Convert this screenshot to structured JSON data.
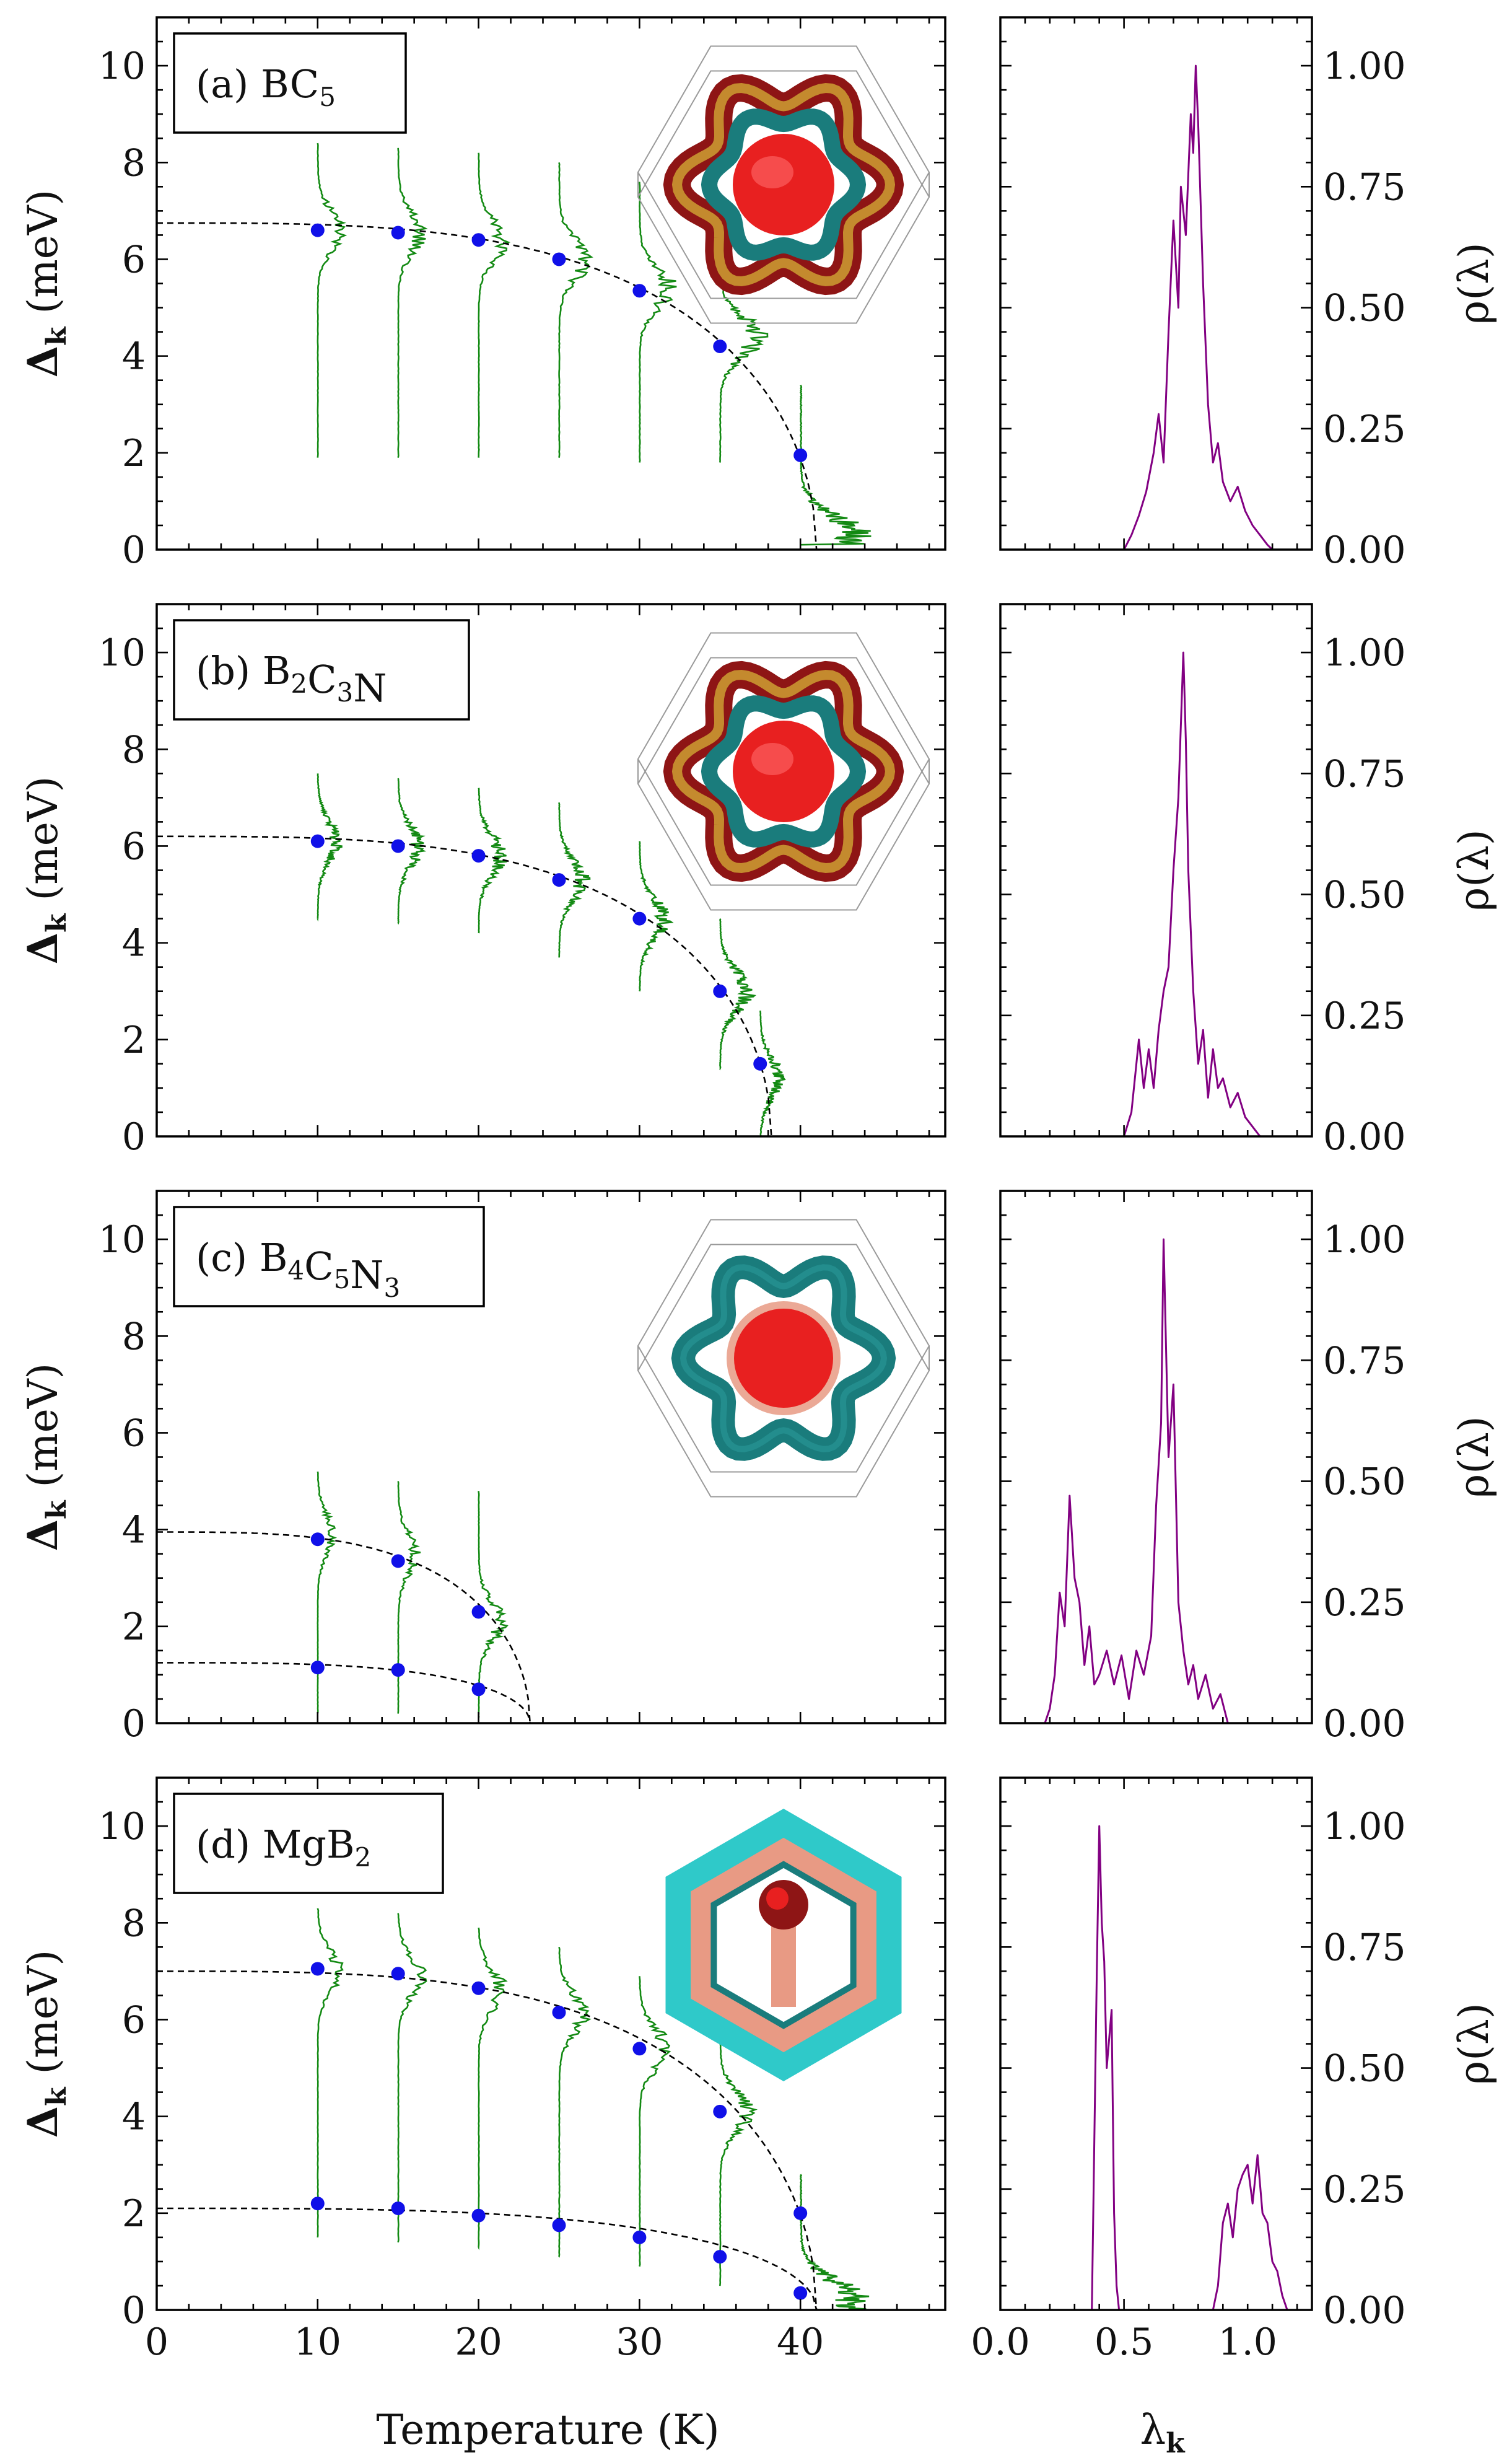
{
  "chart_data": [
    {
      "type": "line",
      "panel": "a",
      "label_prefix": "(a) ",
      "compound": "BC",
      "compound_sub": "5",
      "compound_label": "(a) BC5",
      "left": {
        "xlabel": "Temperature (K)",
        "ylabel": "Δk (meV)",
        "xlim": [
          0,
          49
        ],
        "ylim": [
          0,
          11
        ],
        "xticks": [
          0,
          10,
          20,
          30,
          40
        ],
        "yticks": [
          0,
          2,
          4,
          6,
          8,
          10
        ],
        "gap_points": [
          {
            "T": 10,
            "gap": 6.6
          },
          {
            "T": 15,
            "gap": 6.55
          },
          {
            "T": 20,
            "gap": 6.4
          },
          {
            "T": 25,
            "gap": 6.0
          },
          {
            "T": 30,
            "gap": 5.35
          },
          {
            "T": 35,
            "gap": 4.2
          },
          {
            "T": 40,
            "gap": 1.95
          }
        ],
        "fit_curves": [
          {
            "delta0": 6.75,
            "Tc": 41
          }
        ],
        "distributions": [
          {
            "T": 10,
            "ymin": 1.9,
            "ymax": 8.4,
            "peak": 6.6,
            "height": 1.5
          },
          {
            "T": 15,
            "ymin": 1.9,
            "ymax": 8.3,
            "peak": 6.55,
            "height": 1.6
          },
          {
            "T": 20,
            "ymin": 1.9,
            "ymax": 8.2,
            "peak": 6.4,
            "height": 1.7
          },
          {
            "T": 25,
            "ymin": 1.9,
            "ymax": 8.0,
            "peak": 6.0,
            "height": 1.8
          },
          {
            "T": 30,
            "ymin": 1.8,
            "ymax": 7.6,
            "peak": 5.4,
            "height": 2.0
          },
          {
            "T": 35,
            "ymin": 1.8,
            "ymax": 6.5,
            "peak": 4.4,
            "height": 2.5
          },
          {
            "T": 40,
            "ymin": 0.1,
            "ymax": 3.4,
            "peak": 0.3,
            "height": 3.8
          }
        ]
      },
      "right": {
        "xlabel": "λk",
        "ylabel": "ρ(λ)",
        "xlim": [
          0,
          1.26
        ],
        "ylim": [
          0,
          1.1
        ],
        "xticks": [
          0.0,
          0.5,
          1.0
        ],
        "yticks": [
          0.0,
          0.25,
          0.5,
          0.75,
          1.0
        ],
        "x": [
          0.5,
          0.53,
          0.56,
          0.59,
          0.62,
          0.64,
          0.66,
          0.68,
          0.7,
          0.72,
          0.73,
          0.75,
          0.77,
          0.78,
          0.79,
          0.8,
          0.82,
          0.84,
          0.86,
          0.88,
          0.9,
          0.93,
          0.96,
          0.99,
          1.02,
          1.05,
          1.08,
          1.1
        ],
        "y": [
          0.0,
          0.03,
          0.07,
          0.12,
          0.2,
          0.28,
          0.18,
          0.45,
          0.68,
          0.5,
          0.75,
          0.65,
          0.9,
          0.82,
          1.0,
          0.88,
          0.55,
          0.3,
          0.18,
          0.22,
          0.14,
          0.1,
          0.13,
          0.08,
          0.05,
          0.03,
          0.01,
          0.0
        ]
      }
    },
    {
      "type": "line",
      "panel": "b",
      "label_prefix": "(b) ",
      "compound": "B2C3N",
      "compound_label": "(b) B2C3N",
      "left": {
        "xlabel": "Temperature (K)",
        "ylabel": "Δk (meV)",
        "xlim": [
          0,
          49
        ],
        "ylim": [
          0,
          11
        ],
        "xticks": [
          0,
          10,
          20,
          30,
          40
        ],
        "yticks": [
          0,
          2,
          4,
          6,
          8,
          10
        ],
        "gap_points": [
          {
            "T": 10,
            "gap": 6.1
          },
          {
            "T": 15,
            "gap": 6.0
          },
          {
            "T": 20,
            "gap": 5.8
          },
          {
            "T": 25,
            "gap": 5.3
          },
          {
            "T": 30,
            "gap": 4.5
          },
          {
            "T": 35,
            "gap": 3.0
          },
          {
            "T": 37.5,
            "gap": 1.5
          }
        ],
        "fit_curves": [
          {
            "delta0": 6.2,
            "Tc": 38.2
          }
        ],
        "distributions": [
          {
            "T": 10,
            "ymin": 4.5,
            "ymax": 7.5,
            "peak": 6.1,
            "height": 1.3
          },
          {
            "T": 15,
            "ymin": 4.4,
            "ymax": 7.4,
            "peak": 6.0,
            "height": 1.4
          },
          {
            "T": 20,
            "ymin": 4.2,
            "ymax": 7.2,
            "peak": 5.8,
            "height": 1.5
          },
          {
            "T": 25,
            "ymin": 3.7,
            "ymax": 6.9,
            "peak": 5.3,
            "height": 1.6
          },
          {
            "T": 30,
            "ymin": 3.0,
            "ymax": 6.1,
            "peak": 4.5,
            "height": 1.7
          },
          {
            "T": 35,
            "ymin": 1.4,
            "ymax": 4.5,
            "peak": 3.0,
            "height": 1.9
          },
          {
            "T": 37.5,
            "ymin": 0.0,
            "ymax": 2.6,
            "peak": 1.2,
            "height": 1.3
          }
        ]
      },
      "right": {
        "xlabel": "λk",
        "ylabel": "ρ(λ)",
        "xlim": [
          0,
          1.26
        ],
        "ylim": [
          0,
          1.1
        ],
        "xticks": [
          0.0,
          0.5,
          1.0
        ],
        "yticks": [
          0.0,
          0.25,
          0.5,
          0.75,
          1.0
        ],
        "x": [
          0.5,
          0.53,
          0.56,
          0.58,
          0.6,
          0.62,
          0.64,
          0.66,
          0.68,
          0.7,
          0.72,
          0.74,
          0.75,
          0.76,
          0.78,
          0.8,
          0.82,
          0.84,
          0.86,
          0.88,
          0.9,
          0.93,
          0.96,
          0.99,
          1.02,
          1.05
        ],
        "y": [
          0.0,
          0.05,
          0.2,
          0.1,
          0.18,
          0.1,
          0.22,
          0.3,
          0.35,
          0.55,
          0.7,
          1.0,
          0.82,
          0.55,
          0.3,
          0.15,
          0.22,
          0.08,
          0.18,
          0.1,
          0.12,
          0.06,
          0.09,
          0.04,
          0.02,
          0.0
        ]
      }
    },
    {
      "type": "line",
      "panel": "c",
      "label_prefix": "(c) ",
      "compound": "B4C5N3",
      "compound_label": "(c) B4C5N3",
      "left": {
        "xlabel": "Temperature (K)",
        "ylabel": "Δk (meV)",
        "xlim": [
          0,
          49
        ],
        "ylim": [
          0,
          11
        ],
        "xticks": [
          0,
          10,
          20,
          30,
          40
        ],
        "yticks": [
          0,
          2,
          4,
          6,
          8,
          10
        ],
        "gap_points": [
          {
            "T": 10,
            "gap": 3.8
          },
          {
            "T": 15,
            "gap": 3.35
          },
          {
            "T": 20,
            "gap": 2.3
          },
          {
            "T": 10,
            "gap": 1.15
          },
          {
            "T": 15,
            "gap": 1.1
          },
          {
            "T": 20,
            "gap": 0.7
          }
        ],
        "fit_curves": [
          {
            "delta0": 3.95,
            "Tc": 23.2
          },
          {
            "delta0": 1.25,
            "Tc": 23.2
          }
        ],
        "distributions": [
          {
            "T": 10,
            "ymin": 0.2,
            "ymax": 5.2,
            "peak": 3.9,
            "height": 1.0
          },
          {
            "T": 15,
            "ymin": 0.2,
            "ymax": 5.0,
            "peak": 3.5,
            "height": 1.2
          },
          {
            "T": 20,
            "ymin": 0.1,
            "ymax": 4.8,
            "peak": 2.1,
            "height": 1.5
          }
        ]
      },
      "right": {
        "xlabel": "λk",
        "ylabel": "ρ(λ)",
        "xlim": [
          0,
          1.26
        ],
        "ylim": [
          0,
          1.1
        ],
        "xticks": [
          0.0,
          0.5,
          1.0
        ],
        "yticks": [
          0.0,
          0.25,
          0.5,
          0.75,
          1.0
        ],
        "x": [
          0.18,
          0.2,
          0.22,
          0.24,
          0.26,
          0.28,
          0.3,
          0.32,
          0.34,
          0.36,
          0.38,
          0.4,
          0.43,
          0.46,
          0.49,
          0.52,
          0.55,
          0.58,
          0.61,
          0.63,
          0.65,
          0.66,
          0.68,
          0.7,
          0.72,
          0.74,
          0.76,
          0.78,
          0.8,
          0.83,
          0.86,
          0.89,
          0.92
        ],
        "y": [
          0.0,
          0.03,
          0.1,
          0.27,
          0.2,
          0.47,
          0.3,
          0.25,
          0.12,
          0.2,
          0.08,
          0.1,
          0.15,
          0.08,
          0.14,
          0.05,
          0.15,
          0.1,
          0.18,
          0.45,
          0.62,
          1.0,
          0.55,
          0.7,
          0.25,
          0.15,
          0.08,
          0.12,
          0.05,
          0.1,
          0.03,
          0.06,
          0.0
        ]
      }
    },
    {
      "type": "line",
      "panel": "d",
      "label_prefix": "(d) ",
      "compound": "MgB2",
      "compound_label": "(d) MgB2",
      "left": {
        "xlabel": "Temperature (K)",
        "ylabel": "Δk (meV)",
        "xlim": [
          0,
          49
        ],
        "ylim": [
          0,
          11
        ],
        "xticks": [
          0,
          10,
          20,
          30,
          40
        ],
        "yticks": [
          0,
          2,
          4,
          6,
          8,
          10
        ],
        "gap_points": [
          {
            "T": 10,
            "gap": 7.05
          },
          {
            "T": 15,
            "gap": 6.95
          },
          {
            "T": 20,
            "gap": 6.65
          },
          {
            "T": 25,
            "gap": 6.15
          },
          {
            "T": 30,
            "gap": 5.4
          },
          {
            "T": 35,
            "gap": 4.1
          },
          {
            "T": 40,
            "gap": 2.0
          },
          {
            "T": 10,
            "gap": 2.2
          },
          {
            "T": 15,
            "gap": 2.1
          },
          {
            "T": 20,
            "gap": 1.95
          },
          {
            "T": 25,
            "gap": 1.75
          },
          {
            "T": 30,
            "gap": 1.5
          },
          {
            "T": 35,
            "gap": 1.1
          },
          {
            "T": 40,
            "gap": 0.35
          }
        ],
        "fit_curves": [
          {
            "delta0": 7.0,
            "Tc": 41
          },
          {
            "delta0": 2.1,
            "Tc": 41
          }
        ],
        "distributions": [
          {
            "T": 10,
            "ymin": 1.5,
            "ymax": 8.3,
            "peak": 7.0,
            "height": 1.4
          },
          {
            "T": 15,
            "ymin": 1.4,
            "ymax": 8.2,
            "peak": 6.9,
            "height": 1.5
          },
          {
            "T": 20,
            "ymin": 1.3,
            "ymax": 7.9,
            "peak": 6.6,
            "height": 1.6
          },
          {
            "T": 25,
            "ymin": 1.1,
            "ymax": 7.5,
            "peak": 6.1,
            "height": 1.7
          },
          {
            "T": 30,
            "ymin": 0.9,
            "ymax": 6.9,
            "peak": 5.4,
            "height": 1.8
          },
          {
            "T": 35,
            "ymin": 0.5,
            "ymax": 5.7,
            "peak": 4.1,
            "height": 1.9
          },
          {
            "T": 40,
            "ymin": 0.0,
            "ymax": 2.8,
            "peak": 0.2,
            "height": 3.8
          }
        ]
      },
      "right": {
        "xlabel": "λk",
        "ylabel": "ρ(λ)",
        "xlim": [
          0,
          1.26
        ],
        "ylim": [
          0,
          1.1
        ],
        "xticks": [
          0.0,
          0.5,
          1.0
        ],
        "yticks": [
          0.0,
          0.25,
          0.5,
          0.75,
          1.0
        ],
        "x": [
          0.35,
          0.37,
          0.39,
          0.4,
          0.41,
          0.42,
          0.43,
          0.45,
          0.46,
          0.47,
          0.48,
          0.5,
          0.6,
          0.7,
          0.8,
          0.86,
          0.88,
          0.9,
          0.92,
          0.94,
          0.96,
          0.98,
          1.0,
          1.02,
          1.04,
          1.06,
          1.08,
          1.1,
          1.12,
          1.14,
          1.16
        ],
        "y": [
          0.0,
          0.0,
          0.7,
          1.0,
          0.8,
          0.72,
          0.5,
          0.62,
          0.2,
          0.05,
          0.0,
          0.0,
          0.0,
          0.0,
          0.0,
          0.0,
          0.05,
          0.18,
          0.22,
          0.15,
          0.25,
          0.28,
          0.3,
          0.22,
          0.32,
          0.2,
          0.18,
          0.1,
          0.08,
          0.03,
          0.0
        ]
      }
    }
  ],
  "colors": {
    "gap_marker": "#1010e8",
    "distribution": "#138a13",
    "density": "#820082",
    "fit": "#000000",
    "fs_red": "#e82020",
    "fs_darkred": "#8e1515",
    "fs_gold": "#c48a2e",
    "fs_teal": "#1a7c7c",
    "fs_cyan": "#2fc9c9",
    "fs_salmon": "#e89a84"
  },
  "icons": [
    "fermi-surface-bc5-icon",
    "fermi-surface-b2c3n-icon",
    "fermi-surface-b4c5n3-icon",
    "fermi-surface-mgb2-icon"
  ]
}
